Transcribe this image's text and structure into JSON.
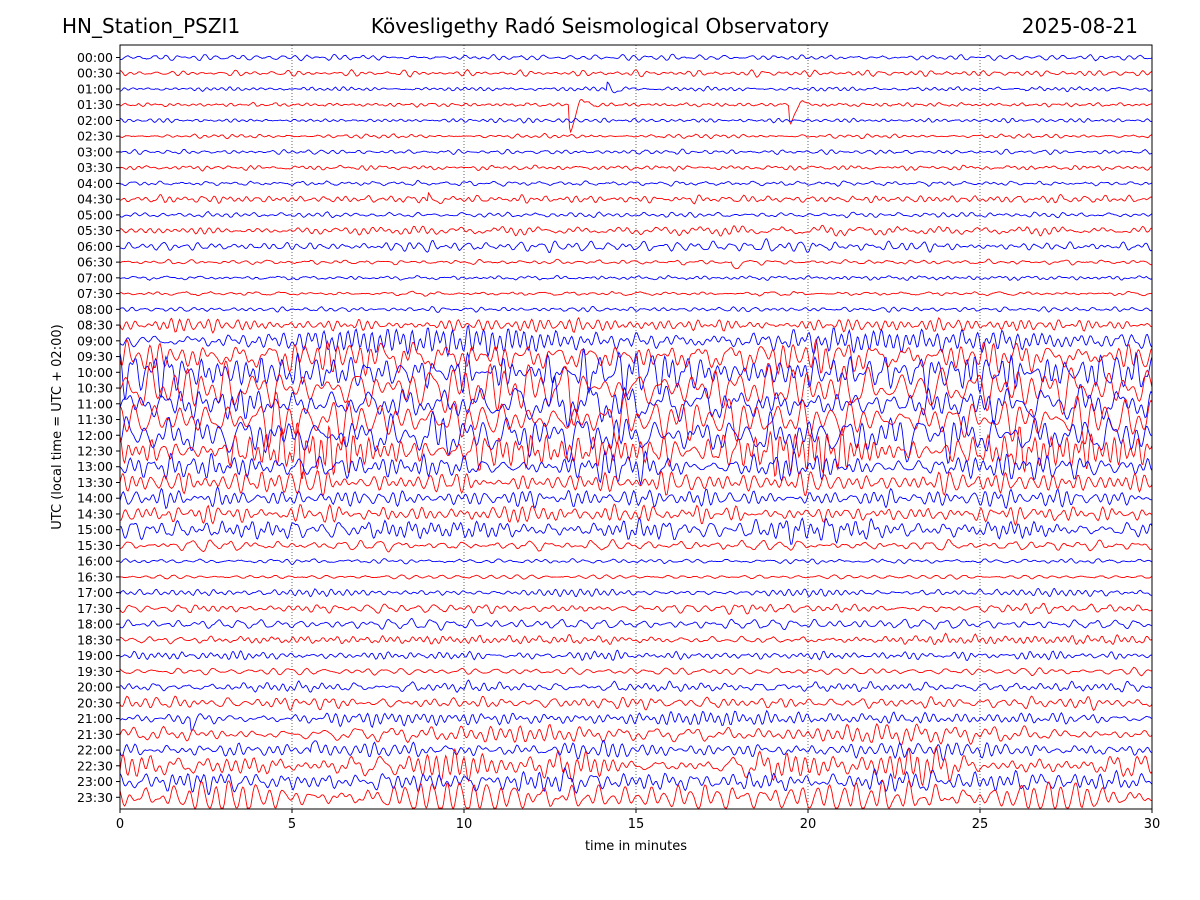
{
  "header": {
    "station": "HN_Station_PSZI1",
    "observatory": "Kövesligethy Radó Seismological Observatory",
    "date": "2025-08-21"
  },
  "chart_data": {
    "type": "line",
    "title": "Kövesligethy Radó Seismological Observatory",
    "xlabel": "time in minutes",
    "ylabel": "UTC (local time = UTC + 02:00)",
    "xlim": [
      0,
      30
    ],
    "xticks": [
      0,
      5,
      10,
      15,
      20,
      25,
      30
    ],
    "grid_x": true,
    "row_labels": [
      "00:00",
      "00:30",
      "01:00",
      "01:30",
      "02:00",
      "02:30",
      "03:00",
      "03:30",
      "04:00",
      "04:30",
      "05:00",
      "05:30",
      "06:00",
      "06:30",
      "07:00",
      "07:30",
      "08:00",
      "08:30",
      "09:00",
      "09:30",
      "10:00",
      "10:30",
      "11:00",
      "11:30",
      "12:00",
      "12:30",
      "13:00",
      "13:30",
      "14:00",
      "14:30",
      "15:00",
      "15:30",
      "16:00",
      "16:30",
      "17:00",
      "17:30",
      "18:00",
      "18:30",
      "19:00",
      "19:30",
      "20:00",
      "20:30",
      "21:00",
      "21:30",
      "22:00",
      "22:30",
      "23:00",
      "23:30"
    ],
    "row_colors": [
      "#0000ff",
      "#ff0000"
    ],
    "row_activity": [
      0.22,
      0.18,
      0.18,
      0.14,
      0.14,
      0.12,
      0.1,
      0.12,
      0.22,
      0.3,
      0.22,
      0.4,
      0.4,
      0.15,
      0.12,
      0.06,
      0.12,
      0.45,
      0.7,
      0.9,
      1.0,
      1.0,
      1.0,
      1.0,
      1.0,
      0.95,
      0.85,
      0.7,
      0.6,
      0.6,
      0.65,
      0.4,
      0.18,
      0.15,
      0.3,
      0.35,
      0.4,
      0.35,
      0.3,
      0.32,
      0.4,
      0.4,
      0.45,
      0.55,
      0.6,
      0.8,
      0.75,
      0.8
    ],
    "events": [
      {
        "row": 3,
        "minute": 13.1,
        "amplitude": 3.2
      },
      {
        "row": 3,
        "minute": 19.5,
        "amplitude": 2.2
      },
      {
        "row": 9,
        "minute": 9.0,
        "amplitude": 1.2
      },
      {
        "row": 13,
        "minute": 17.8,
        "amplitude": 1.5
      },
      {
        "row": 2,
        "minute": 14.2,
        "amplitude": 1.0
      },
      {
        "row": 21,
        "minute": 13.1,
        "amplitude": 2.5
      },
      {
        "row": 42,
        "minute": 2.1,
        "amplitude": 1.2
      },
      {
        "row": 44,
        "minute": 5.6,
        "amplitude": 1.4
      }
    ]
  }
}
